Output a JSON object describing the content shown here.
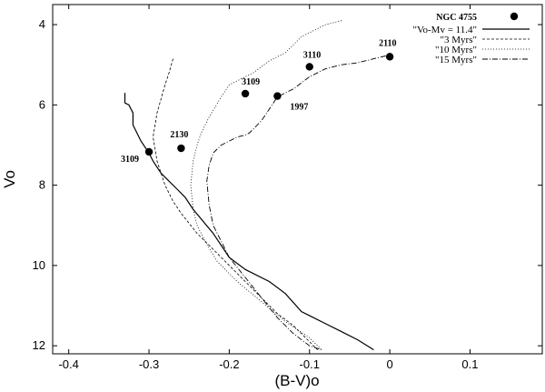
{
  "chart_data": {
    "type": "line",
    "xlabel": "(B-V)o",
    "ylabel": "Vo",
    "xlim": [
      -0.42,
      0.19
    ],
    "ylim": [
      12.2,
      3.5
    ],
    "y_inverted": true,
    "x_ticks": [
      "-0.4",
      "-0.3",
      "-0.2",
      "-0.1",
      "0",
      "0.1"
    ],
    "x_tick_values": [
      -0.4,
      -0.3,
      -0.2,
      -0.1,
      0,
      0.1
    ],
    "y_ticks": [
      "4",
      "6",
      "8",
      "10",
      "12"
    ],
    "y_tick_values": [
      4,
      6,
      8,
      10,
      12
    ],
    "legend_position": "top-right",
    "points_series": {
      "name": "NGC 4755",
      "points": [
        {
          "x": -0.3,
          "y": 7.17,
          "label": "3109"
        },
        {
          "x": -0.26,
          "y": 7.08,
          "label": "2130"
        },
        {
          "x": -0.18,
          "y": 5.72,
          "label": "3109"
        },
        {
          "x": -0.14,
          "y": 5.78,
          "label": "1997"
        },
        {
          "x": -0.1,
          "y": 5.05,
          "label": "3110"
        },
        {
          "x": 0.0,
          "y": 4.8,
          "label": "2110"
        }
      ]
    },
    "series": [
      {
        "name": "\"Vo-Mv = 11.4\"",
        "style": "solid",
        "x": [
          -0.33,
          -0.33,
          -0.325,
          -0.32,
          -0.32,
          -0.31,
          -0.3,
          -0.295,
          -0.29,
          -0.285,
          -0.275,
          -0.265,
          -0.255,
          -0.245,
          -0.22,
          -0.2,
          -0.18,
          -0.15,
          -0.13,
          -0.11,
          -0.1,
          -0.08,
          -0.06,
          -0.04,
          -0.02
        ],
        "y": [
          5.7,
          5.95,
          6.0,
          6.2,
          6.5,
          6.9,
          7.2,
          7.4,
          7.55,
          7.7,
          7.9,
          8.1,
          8.3,
          8.6,
          9.2,
          9.8,
          10.1,
          10.4,
          10.7,
          11.15,
          11.25,
          11.45,
          11.65,
          11.85,
          12.1
        ]
      },
      {
        "name": "\"3 Myrs\"",
        "style": "dashed",
        "x": [
          -0.27,
          -0.275,
          -0.28,
          -0.29,
          -0.295,
          -0.29,
          -0.285,
          -0.28,
          -0.27,
          -0.26,
          -0.24,
          -0.225,
          -0.21,
          -0.18,
          -0.16,
          -0.14,
          -0.12,
          -0.1,
          -0.09
        ],
        "y": [
          4.85,
          5.2,
          5.5,
          6.2,
          6.8,
          7.4,
          7.7,
          8.0,
          8.4,
          8.7,
          9.2,
          9.5,
          9.8,
          10.4,
          10.8,
          11.2,
          11.5,
          11.9,
          12.1
        ]
      },
      {
        "name": "\"10 Myrs\"",
        "style": "dotted",
        "x": [
          -0.06,
          -0.08,
          -0.11,
          -0.13,
          -0.15,
          -0.17,
          -0.18,
          -0.2,
          -0.21,
          -0.225,
          -0.235,
          -0.24,
          -0.245,
          -0.248,
          -0.245,
          -0.24,
          -0.23,
          -0.215,
          -0.19,
          -0.16,
          -0.13,
          -0.1,
          -0.085
        ],
        "y": [
          3.9,
          4.0,
          4.3,
          4.7,
          4.9,
          5.2,
          5.3,
          5.5,
          5.8,
          6.3,
          6.7,
          7.0,
          7.4,
          8.0,
          8.6,
          9.0,
          9.4,
          9.9,
          10.4,
          10.9,
          11.4,
          11.8,
          12.1
        ]
      },
      {
        "name": "\"15 Myrs\"",
        "style": "dashdot",
        "x": [
          -0.005,
          -0.02,
          -0.04,
          -0.06,
          -0.08,
          -0.1,
          -0.12,
          -0.14,
          -0.15,
          -0.16,
          -0.17,
          -0.175,
          -0.18,
          -0.19,
          -0.2,
          -0.21,
          -0.22,
          -0.225,
          -0.228,
          -0.225,
          -0.22,
          -0.21,
          -0.2,
          -0.18,
          -0.16,
          -0.14,
          -0.12,
          -0.1,
          -0.085
        ],
        "y": [
          4.78,
          4.85,
          4.95,
          5.0,
          5.1,
          5.3,
          5.6,
          5.8,
          6.1,
          6.4,
          6.6,
          6.7,
          6.75,
          6.8,
          6.9,
          7.0,
          7.2,
          7.5,
          7.9,
          8.5,
          9.0,
          9.4,
          9.8,
          10.3,
          10.8,
          11.3,
          11.7,
          12.0,
          12.1
        ]
      }
    ]
  }
}
